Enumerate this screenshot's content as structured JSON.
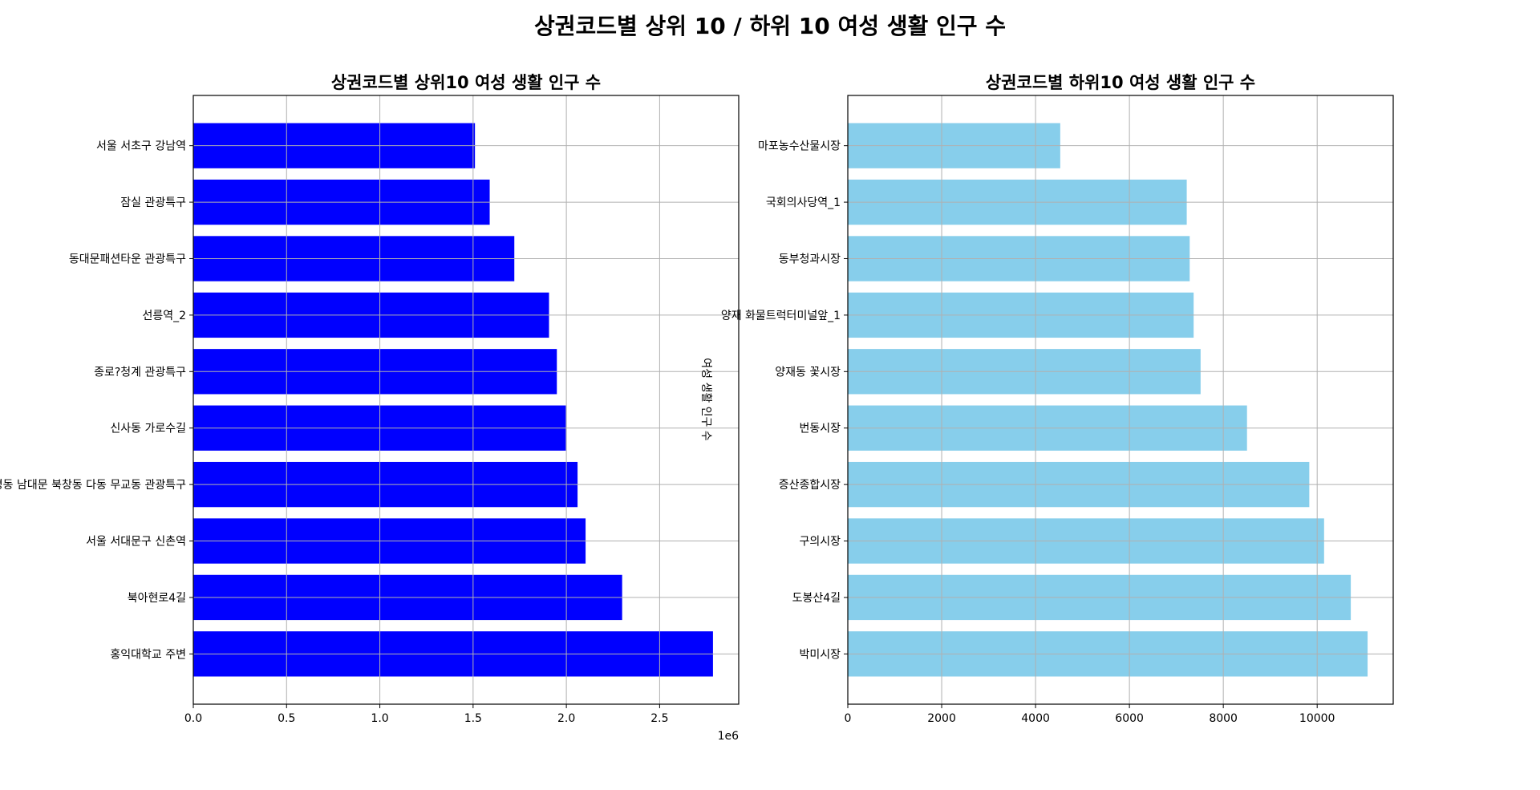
{
  "title": "상권코드별 상위 10 / 하위 10 여성 생활 인구 수",
  "chart_data": [
    {
      "type": "bar",
      "orientation": "horizontal",
      "title": "상권코드별 상위10 여성 생활 인구 수",
      "xlabel": "",
      "ylabel": "",
      "x_offset_label": "1e6",
      "color": "#0000ff",
      "categories": [
        "홍익대학교 주변",
        "북아현로4길",
        "서울 서대문구 신촌역",
        "명동 남대문 북창동 다동 무교동 관광특구",
        "신사동 가로수길",
        "종로?청계 관광특구",
        "선릉역_2",
        "동대문패션타운 관광특구",
        "잠실 관광특구",
        "서울 서초구 강남역"
      ],
      "values": [
        2786000,
        2299000,
        2103000,
        2060000,
        1997000,
        1949000,
        1907000,
        1721000,
        1589000,
        1510000
      ],
      "xlim": [
        0,
        2924000
      ],
      "xticks": [
        0,
        500000,
        1000000,
        1500000,
        2000000,
        2500000
      ],
      "xtick_labels": [
        "0.0",
        "0.5",
        "1.0",
        "1.5",
        "2.0",
        "2.5"
      ],
      "grid": true
    },
    {
      "type": "bar",
      "orientation": "horizontal",
      "title": "상권코드별 하위10 여성 생활 인구 수",
      "xlabel": "",
      "ylabel": "여성 생활 인구 수",
      "color": "#87ceeb",
      "categories": [
        "박미시장",
        "도봉산4길",
        "구의시장",
        "증산종합시장",
        "번동시장",
        "양재동 꽃시장",
        "양재 화물트럭터미널앞_1",
        "동부청과시장",
        "국회의사당역_1",
        "마포농수산물시장"
      ],
      "values": [
        11074,
        10716,
        10147,
        9832,
        8505,
        7516,
        7368,
        7284,
        7221,
        4526
      ],
      "xlim": [
        0,
        11620
      ],
      "xticks": [
        0,
        2000,
        4000,
        6000,
        8000,
        10000
      ],
      "xtick_labels": [
        "0",
        "2000",
        "4000",
        "6000",
        "8000",
        "10000"
      ],
      "grid": true
    }
  ]
}
